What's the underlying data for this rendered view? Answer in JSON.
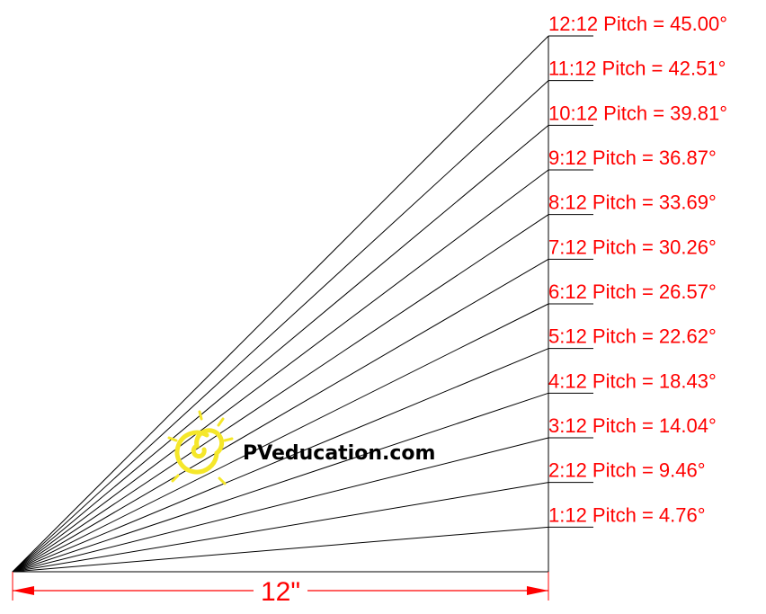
{
  "diagram": {
    "pitches": [
      {
        "label": "12:12 Pitch = 45.00°",
        "rise": 12
      },
      {
        "label": "11:12 Pitch = 42.51°",
        "rise": 11
      },
      {
        "label": "10:12 Pitch = 39.81°",
        "rise": 10
      },
      {
        "label": "9:12 Pitch = 36.87°",
        "rise": 9
      },
      {
        "label": "8:12 Pitch = 33.69°",
        "rise": 8
      },
      {
        "label": "7:12 Pitch = 30.26°",
        "rise": 7
      },
      {
        "label": "6:12 Pitch = 26.57°",
        "rise": 6
      },
      {
        "label": "5:12 Pitch = 22.62°",
        "rise": 5
      },
      {
        "label": "4:12 Pitch = 18.43°",
        "rise": 4
      },
      {
        "label": "3:12 Pitch = 14.04°",
        "rise": 3
      },
      {
        "label": "2:12 Pitch = 9.46°",
        "rise": 2
      },
      {
        "label": "1:12 Pitch = 4.76°",
        "rise": 1
      }
    ],
    "run": 12,
    "dimension_label": "12\"",
    "brand": "PVeducation.com",
    "colors": {
      "line": "#000000",
      "label": "#ff0000",
      "dimension": "#ff0000",
      "logo": "#f5e72a"
    }
  }
}
